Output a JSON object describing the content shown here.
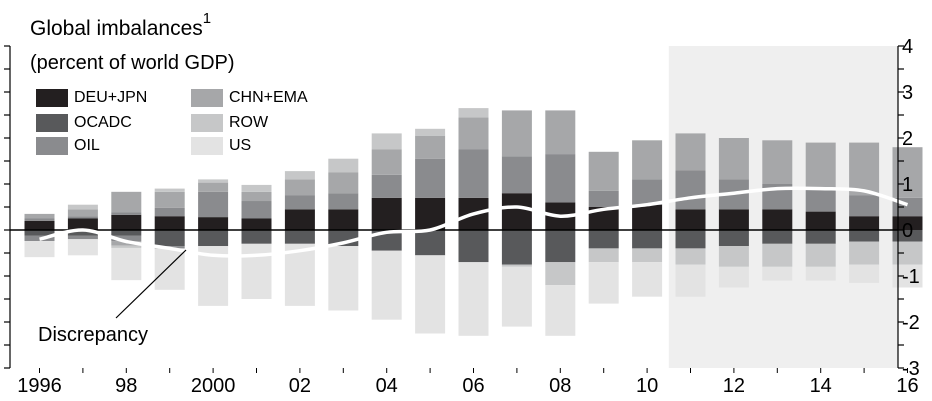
{
  "title": "Global imbalances",
  "title_superscript": "1",
  "subtitle": "(percent of world GDP)",
  "annotation": "Discrepancy",
  "chart_data": {
    "type": "bar",
    "stacked": true,
    "categories": [
      1996,
      1997,
      1998,
      1999,
      2000,
      2001,
      2002,
      2003,
      2004,
      2005,
      2006,
      2007,
      2008,
      2009,
      2010,
      2011,
      2012,
      2013,
      2014,
      2015,
      2016
    ],
    "x_tick_labels": [
      "1996",
      "98",
      "2000",
      "02",
      "04",
      "06",
      "08",
      "10",
      "12",
      "14",
      "16"
    ],
    "y_tick_labels": [
      "-3",
      "-2",
      "-1",
      "0",
      "1",
      "2",
      "3",
      "4"
    ],
    "ylim": [
      -3,
      4
    ],
    "projection_shaded_from": 2011,
    "series": [
      {
        "name": "DEU+JPN",
        "color": "#231f20",
        "positive": [
          0.2,
          0.25,
          0.33,
          0.3,
          0.28,
          0.25,
          0.45,
          0.45,
          0.7,
          0.7,
          0.7,
          0.8,
          0.6,
          0.5,
          0.55,
          0.45,
          0.45,
          0.45,
          0.4,
          0.3,
          0.3
        ],
        "negative": [
          0,
          0,
          0,
          0,
          0,
          0,
          0,
          0,
          0,
          0,
          0,
          0,
          0,
          0,
          0,
          0,
          0,
          0,
          0,
          0,
          0
        ]
      },
      {
        "name": "OCADC",
        "color": "#58595b",
        "positive": [
          0,
          0,
          0,
          0,
          0,
          0,
          0,
          0,
          0,
          0,
          0,
          0,
          0,
          0,
          0,
          0,
          0,
          0,
          0,
          0,
          0
        ],
        "negative": [
          0.12,
          0.12,
          0.12,
          0.35,
          0.35,
          0.3,
          0.3,
          0.35,
          0.45,
          0.55,
          0.7,
          0.75,
          0.7,
          0.4,
          0.4,
          0.4,
          0.35,
          0.3,
          0.3,
          0.25,
          0.25
        ]
      },
      {
        "name": "OIL",
        "color": "#8a8b8e",
        "positive": [
          0.05,
          0.05,
          0.05,
          0.18,
          0.55,
          0.38,
          0.3,
          0.35,
          0.5,
          0.85,
          1.05,
          0.8,
          1.05,
          0.35,
          0.55,
          0.85,
          0.65,
          0.55,
          0.5,
          0.45,
          0.4
        ],
        "negative": [
          0.12,
          0.08,
          0.12,
          0.05,
          0,
          0,
          0,
          0,
          0,
          0,
          0,
          0,
          0,
          0,
          0,
          0,
          0,
          0,
          0,
          0,
          0
        ]
      },
      {
        "name": "CHN+EMA",
        "color": "#a6a7a9",
        "positive": [
          0.1,
          0.15,
          0.45,
          0.35,
          0.2,
          0.2,
          0.35,
          0.45,
          0.55,
          0.5,
          0.7,
          1.0,
          0.95,
          0.85,
          0.85,
          0.8,
          0.9,
          0.95,
          1.0,
          1.15,
          1.1
        ],
        "negative": [
          0,
          0,
          0.1,
          0,
          0,
          0,
          0,
          0,
          0,
          0,
          0,
          0,
          0,
          0,
          0,
          0,
          0,
          0,
          0,
          0,
          0
        ]
      },
      {
        "name": "ROW",
        "color": "#c6c7c8",
        "positive": [
          0,
          0.1,
          0,
          0.07,
          0.07,
          0.15,
          0.18,
          0.3,
          0.35,
          0.15,
          0.2,
          0,
          0,
          0,
          0,
          0,
          0,
          0,
          0,
          0,
          0
        ],
        "negative": [
          0,
          0,
          0.05,
          0,
          0,
          0,
          0,
          0,
          0,
          0,
          0,
          0.05,
          0.5,
          0.3,
          0.3,
          0.35,
          0.45,
          0.5,
          0.5,
          0.5,
          0.5
        ]
      },
      {
        "name": "US",
        "color": "#e3e3e3",
        "positive": [
          0,
          0,
          0,
          0,
          0,
          0,
          0,
          0,
          0,
          0,
          0,
          0,
          0,
          0,
          0,
          0,
          0,
          0,
          0,
          0,
          0
        ],
        "negative": [
          0.35,
          0.35,
          0.7,
          0.9,
          1.3,
          1.2,
          1.35,
          1.4,
          1.5,
          1.7,
          1.6,
          1.3,
          1.1,
          0.9,
          0.75,
          0.7,
          0.45,
          0.3,
          0.3,
          0.4,
          0.5
        ]
      }
    ],
    "line": {
      "name": "Discrepancy",
      "color": "#ffffff",
      "values": [
        -0.2,
        0.0,
        -0.25,
        -0.4,
        -0.55,
        -0.55,
        -0.45,
        -0.28,
        -0.05,
        0.0,
        0.35,
        0.5,
        0.3,
        0.45,
        0.55,
        0.7,
        0.8,
        0.9,
        0.9,
        0.85,
        0.55
      ]
    },
    "legend": [
      "DEU+JPN",
      "CHN+EMA",
      "OCADC",
      "ROW",
      "OIL",
      "US"
    ]
  }
}
